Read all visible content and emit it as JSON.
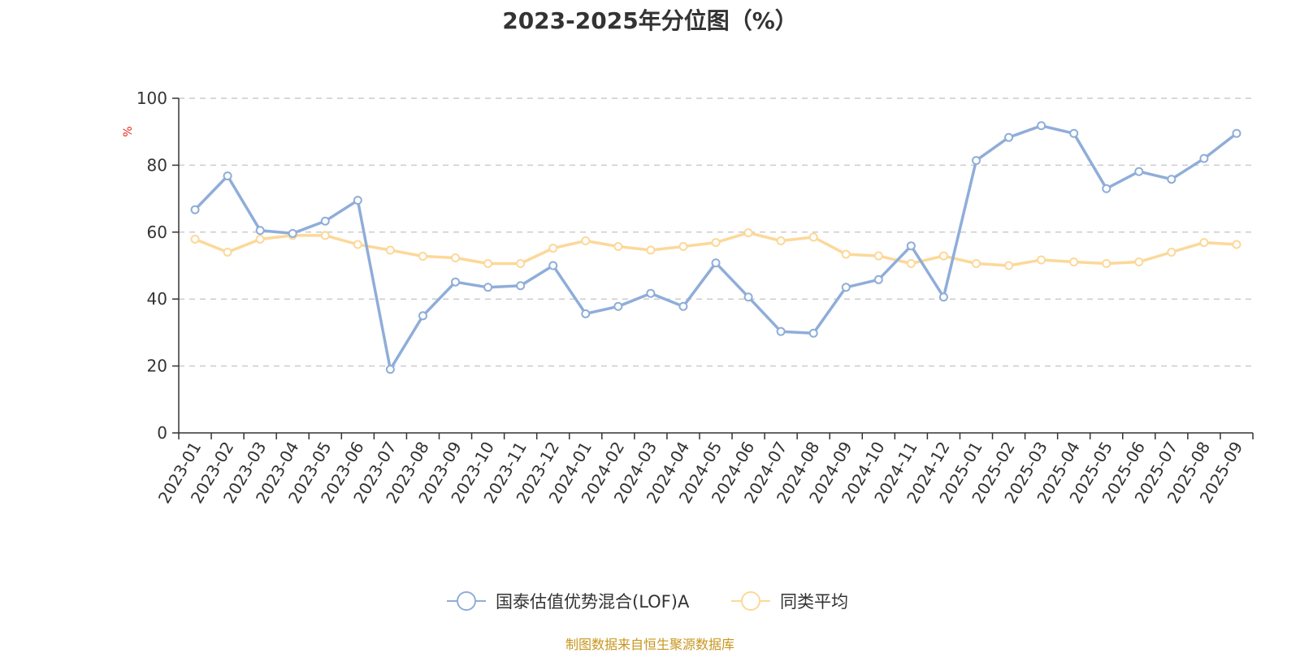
{
  "title": "2023-2025年分位图（%）",
  "source_note": "制图数据来自恒生聚源数据库",
  "colors": {
    "series_a": "#8fadd9",
    "series_b": "#fcd899",
    "unit": "#e8261c",
    "grid": "#cccccc",
    "axis": "#333333"
  },
  "chart_data": {
    "type": "line",
    "title": "2023-2025年分位图（%）",
    "ylabel": "%",
    "xlabel": "",
    "ylim": [
      0,
      100
    ],
    "yticks": [
      0,
      20,
      40,
      60,
      80,
      100
    ],
    "grid": true,
    "legend_position": "bottom",
    "categories": [
      "2023-01",
      "2023-02",
      "2023-03",
      "2023-04",
      "2023-05",
      "2023-06",
      "2023-07",
      "2023-08",
      "2023-09",
      "2023-10",
      "2023-11",
      "2023-12",
      "2024-01",
      "2024-02",
      "2024-03",
      "2024-04",
      "2024-05",
      "2024-06",
      "2024-07",
      "2024-08",
      "2024-09",
      "2024-10",
      "2024-11",
      "2024-12",
      "2025-01",
      "2025-02",
      "2025-03",
      "2025-04",
      "2025-05",
      "2025-06",
      "2025-07",
      "2025-08",
      "2025-09"
    ],
    "series": [
      {
        "name": "国泰估值优势混合(LOF)A",
        "values": [
          66.7,
          76.8,
          60.5,
          59.6,
          63.3,
          69.5,
          19.0,
          35.0,
          45.1,
          43.5,
          44.0,
          50.0,
          35.6,
          37.8,
          41.7,
          37.8,
          50.8,
          40.6,
          30.3,
          29.8,
          43.5,
          45.8,
          55.9,
          40.6,
          81.4,
          88.3,
          91.8,
          89.5,
          73.0,
          78.1,
          75.8,
          82.0,
          89.5
        ]
      },
      {
        "name": "同类平均",
        "values": [
          57.9,
          54.0,
          57.9,
          59.0,
          59.0,
          56.3,
          54.6,
          52.8,
          52.3,
          50.6,
          50.6,
          55.2,
          57.4,
          55.7,
          54.6,
          55.7,
          56.9,
          59.8,
          57.4,
          58.5,
          53.4,
          52.9,
          50.6,
          52.9,
          50.6,
          50.0,
          51.7,
          51.1,
          50.6,
          51.1,
          54.0,
          56.9,
          56.3
        ]
      }
    ]
  }
}
